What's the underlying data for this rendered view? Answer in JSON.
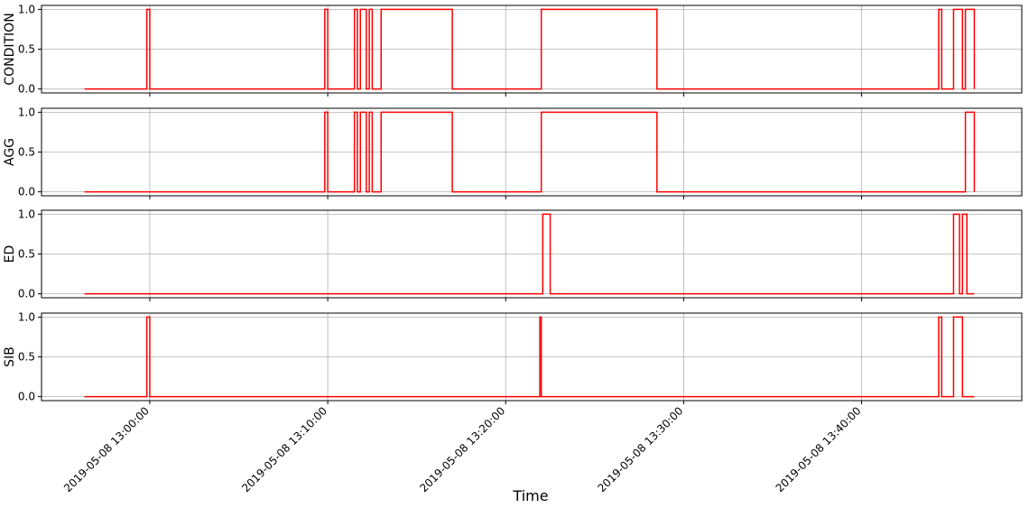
{
  "chart_data": {
    "type": "line",
    "line_style": "step",
    "xlabel": "Time",
    "x_ticks": [
      "2019-05-08 13:00:00",
      "2019-05-08 13:10:00",
      "2019-05-08 13:20:00",
      "2019-05-08 13:30:00",
      "2019-05-08 13:40:00"
    ],
    "xlim": [
      "2019-05-08 12:53:55",
      "2019-05-08 13:49:00"
    ],
    "ylim": [
      -0.05,
      1.05
    ],
    "y_ticks": [
      "0.0",
      "0.5",
      "1.0"
    ],
    "grid": true,
    "line_color": "#ff0000",
    "panels": [
      {
        "ylabel": "CONDITION",
        "points": [
          [
            "2019-05-08 12:56:20",
            0
          ],
          [
            "2019-05-08 12:59:50",
            1
          ],
          [
            "2019-05-08 13:00:00",
            0
          ],
          [
            "2019-05-08 13:09:50",
            1
          ],
          [
            "2019-05-08 13:10:00",
            0
          ],
          [
            "2019-05-08 13:11:30",
            1
          ],
          [
            "2019-05-08 13:11:40",
            0
          ],
          [
            "2019-05-08 13:11:50",
            1
          ],
          [
            "2019-05-08 13:12:10",
            0
          ],
          [
            "2019-05-08 13:12:20",
            1
          ],
          [
            "2019-05-08 13:12:30",
            0
          ],
          [
            "2019-05-08 13:13:00",
            1
          ],
          [
            "2019-05-08 13:17:00",
            0
          ],
          [
            "2019-05-08 13:22:00",
            1
          ],
          [
            "2019-05-08 13:28:30",
            0
          ],
          [
            "2019-05-08 13:44:20",
            1
          ],
          [
            "2019-05-08 13:44:30",
            0
          ],
          [
            "2019-05-08 13:45:10",
            1
          ],
          [
            "2019-05-08 13:45:40",
            0
          ],
          [
            "2019-05-08 13:45:50",
            1
          ],
          [
            "2019-05-08 13:46:20",
            0
          ],
          [
            "2019-05-08 13:46:20",
            0
          ]
        ]
      },
      {
        "ylabel": "AGG",
        "points": [
          [
            "2019-05-08 12:56:20",
            0
          ],
          [
            "2019-05-08 13:09:50",
            1
          ],
          [
            "2019-05-08 13:10:00",
            0
          ],
          [
            "2019-05-08 13:11:30",
            1
          ],
          [
            "2019-05-08 13:11:40",
            0
          ],
          [
            "2019-05-08 13:11:50",
            1
          ],
          [
            "2019-05-08 13:12:10",
            0
          ],
          [
            "2019-05-08 13:12:20",
            1
          ],
          [
            "2019-05-08 13:12:30",
            0
          ],
          [
            "2019-05-08 13:13:00",
            1
          ],
          [
            "2019-05-08 13:17:00",
            0
          ],
          [
            "2019-05-08 13:22:00",
            1
          ],
          [
            "2019-05-08 13:28:30",
            0
          ],
          [
            "2019-05-08 13:45:50",
            1
          ],
          [
            "2019-05-08 13:46:20",
            0
          ],
          [
            "2019-05-08 13:46:20",
            0
          ]
        ]
      },
      {
        "ylabel": "ED",
        "points": [
          [
            "2019-05-08 12:56:20",
            0
          ],
          [
            "2019-05-08 13:22:05",
            1
          ],
          [
            "2019-05-08 13:22:30",
            0
          ],
          [
            "2019-05-08 13:45:10",
            1
          ],
          [
            "2019-05-08 13:45:30",
            0
          ],
          [
            "2019-05-08 13:45:40",
            1
          ],
          [
            "2019-05-08 13:45:55",
            0
          ],
          [
            "2019-05-08 13:46:20",
            0
          ]
        ]
      },
      {
        "ylabel": "SIB",
        "points": [
          [
            "2019-05-08 12:56:20",
            0
          ],
          [
            "2019-05-08 12:59:50",
            1
          ],
          [
            "2019-05-08 13:00:00",
            0
          ],
          [
            "2019-05-08 13:21:55",
            1
          ],
          [
            "2019-05-08 13:22:00",
            0
          ],
          [
            "2019-05-08 13:44:20",
            1
          ],
          [
            "2019-05-08 13:44:30",
            0
          ],
          [
            "2019-05-08 13:45:10",
            1
          ],
          [
            "2019-05-08 13:45:40",
            0
          ],
          [
            "2019-05-08 13:46:20",
            0
          ]
        ]
      }
    ]
  }
}
